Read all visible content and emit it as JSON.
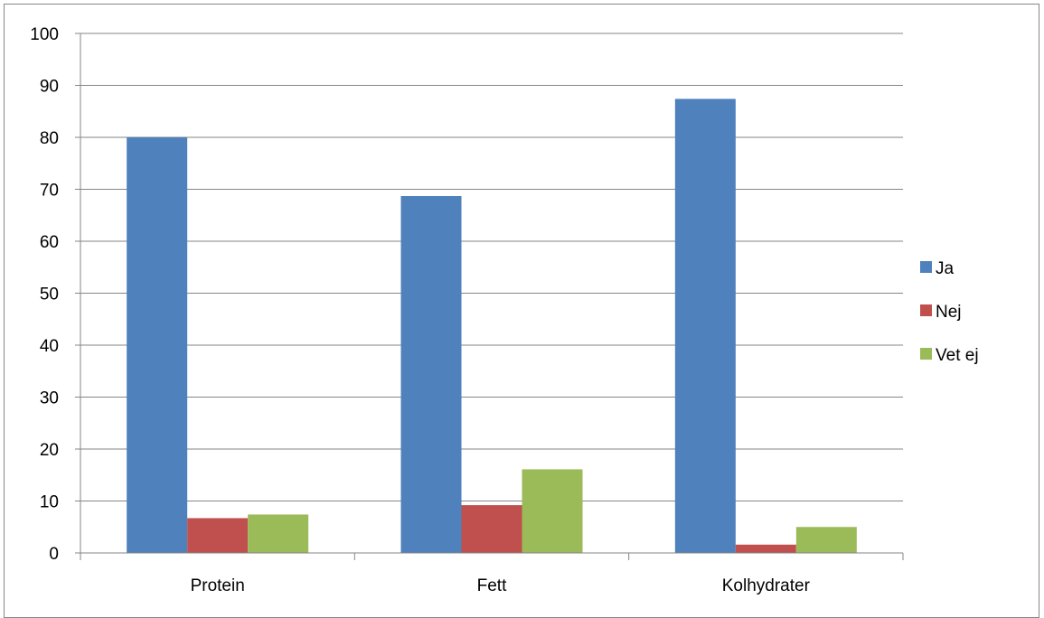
{
  "chart_data": {
    "type": "bar",
    "categories": [
      "Protein",
      "Fett",
      "Kolhydrater"
    ],
    "series": [
      {
        "name": "Ja",
        "values": [
          80,
          68.7,
          87.4
        ],
        "color": "#4f81bd"
      },
      {
        "name": "Nej",
        "values": [
          6.7,
          9.2,
          1.6
        ],
        "color": "#c0504d"
      },
      {
        "name": "Vet ej",
        "values": [
          7.4,
          16.1,
          5.0
        ],
        "color": "#9bbb59"
      }
    ],
    "ylim": [
      0,
      100
    ],
    "yticks": [
      "0",
      "10",
      "20",
      "30",
      "40",
      "50",
      "60",
      "70",
      "80",
      "90",
      "100"
    ],
    "grid": true,
    "legend_position": "right",
    "title": "",
    "xlabel": "",
    "ylabel": ""
  }
}
